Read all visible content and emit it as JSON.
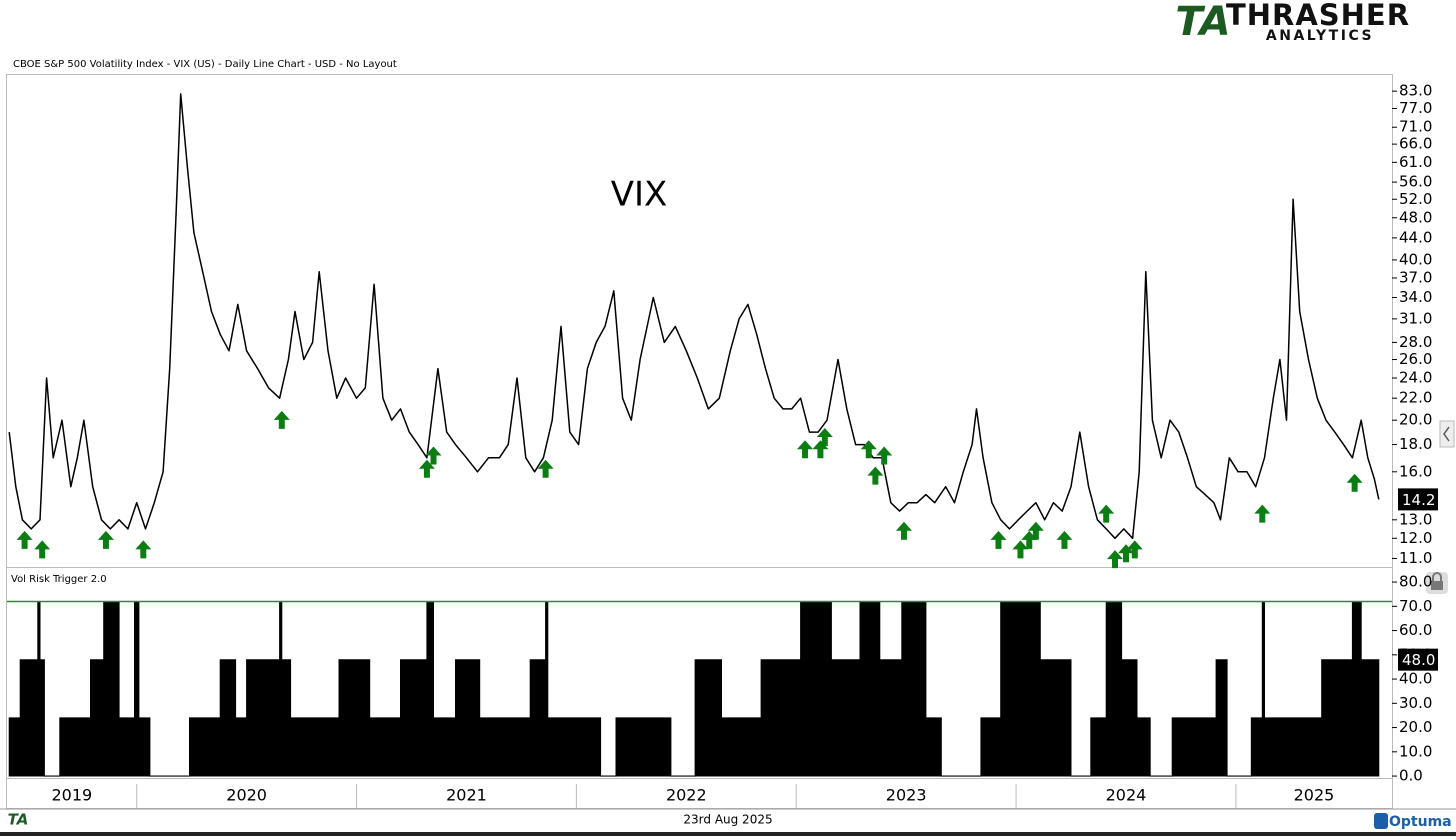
{
  "header": {
    "logo": "TA",
    "brand": "THRASHER",
    "brand_sub": "ANALYTICS"
  },
  "footer": {
    "logo": "TA",
    "date": "23rd Aug 2025",
    "vendor": "Optuma"
  },
  "chart_data": [
    {
      "type": "line",
      "title": "VIX",
      "subtitle": "CBOE S&P 500 Volatility Index - VIX (US) - Daily Line Chart - USD - No Layout",
      "color": "#000000",
      "log_scale": true,
      "xlim": [
        2019.41,
        2025.71
      ],
      "ylim": [
        10.6,
        89
      ],
      "yticks": [
        {
          "value": 11,
          "label": "11.0"
        },
        {
          "value": 12,
          "label": "12.0"
        },
        {
          "value": 13,
          "label": "13.0"
        },
        {
          "value": 16,
          "label": "16.0"
        },
        {
          "value": 18,
          "label": "18.0"
        },
        {
          "value": 20,
          "label": "20.0"
        },
        {
          "value": 22,
          "label": "22.0"
        },
        {
          "value": 24,
          "label": "24.0"
        },
        {
          "value": 26,
          "label": "26.0"
        },
        {
          "value": 28,
          "label": "28.0"
        },
        {
          "value": 31,
          "label": "31.0"
        },
        {
          "value": 34,
          "label": "34.0"
        },
        {
          "value": 37,
          "label": "37.0"
        },
        {
          "value": 40,
          "label": "40.0"
        },
        {
          "value": 44,
          "label": "44.0"
        },
        {
          "value": 48,
          "label": "48.0"
        },
        {
          "value": 52,
          "label": "52.0"
        },
        {
          "value": 56,
          "label": "56.0"
        },
        {
          "value": 61,
          "label": "61.0"
        },
        {
          "value": 66,
          "label": "66.0"
        },
        {
          "value": 71,
          "label": "71.0"
        },
        {
          "value": 77,
          "label": "77.0"
        },
        {
          "value": 83,
          "label": "83.0"
        }
      ],
      "last_value": {
        "value": 14.2,
        "label": "14.2"
      },
      "x": [
        2019.42,
        2019.45,
        2019.48,
        2019.52,
        2019.56,
        2019.59,
        2019.62,
        2019.66,
        2019.7,
        2019.73,
        2019.76,
        2019.8,
        2019.84,
        2019.88,
        2019.92,
        2019.96,
        2020.0,
        2020.04,
        2020.08,
        2020.12,
        2020.15,
        2020.18,
        2020.2,
        2020.23,
        2020.26,
        2020.3,
        2020.34,
        2020.38,
        2020.42,
        2020.46,
        2020.5,
        2020.55,
        2020.6,
        2020.65,
        2020.69,
        2020.72,
        2020.76,
        2020.8,
        2020.83,
        2020.87,
        2020.91,
        2020.95,
        2021.0,
        2021.04,
        2021.08,
        2021.12,
        2021.16,
        2021.2,
        2021.24,
        2021.28,
        2021.32,
        2021.37,
        2021.41,
        2021.45,
        2021.5,
        2021.55,
        2021.6,
        2021.65,
        2021.69,
        2021.73,
        2021.77,
        2021.81,
        2021.85,
        2021.89,
        2021.93,
        2021.97,
        2022.01,
        2022.05,
        2022.09,
        2022.13,
        2022.17,
        2022.21,
        2022.25,
        2022.29,
        2022.35,
        2022.4,
        2022.45,
        2022.5,
        2022.55,
        2022.6,
        2022.65,
        2022.7,
        2022.74,
        2022.78,
        2022.82,
        2022.86,
        2022.9,
        2022.94,
        2022.98,
        2023.02,
        2023.06,
        2023.1,
        2023.14,
        2023.19,
        2023.23,
        2023.27,
        2023.31,
        2023.35,
        2023.39,
        2023.43,
        2023.47,
        2023.51,
        2023.55,
        2023.59,
        2023.63,
        2023.68,
        2023.72,
        2023.76,
        2023.8,
        2023.82,
        2023.85,
        2023.89,
        2023.93,
        2023.97,
        2024.01,
        2024.05,
        2024.09,
        2024.13,
        2024.17,
        2024.21,
        2024.25,
        2024.29,
        2024.33,
        2024.37,
        2024.41,
        2024.45,
        2024.49,
        2024.53,
        2024.56,
        2024.59,
        2024.62,
        2024.66,
        2024.7,
        2024.74,
        2024.78,
        2024.82,
        2024.86,
        2024.9,
        2024.93,
        2024.97,
        2025.01,
        2025.05,
        2025.09,
        2025.13,
        2025.17,
        2025.2,
        2025.23,
        2025.26,
        2025.29,
        2025.33,
        2025.37,
        2025.41,
        2025.45,
        2025.49,
        2025.53,
        2025.57,
        2025.6,
        2025.63,
        2025.65
      ],
      "values": [
        19,
        15,
        13,
        12.5,
        13,
        24,
        17,
        20,
        15,
        17,
        20,
        15,
        13,
        12.5,
        13,
        12.5,
        14,
        12.5,
        14,
        16,
        25,
        50,
        82,
        60,
        45,
        38,
        32,
        29,
        27,
        33,
        27,
        25,
        23,
        22,
        26,
        32,
        26,
        28,
        38,
        27,
        22,
        24,
        22,
        23,
        36,
        22,
        20,
        21,
        19,
        18,
        17,
        25,
        19,
        18,
        17,
        16,
        17,
        17,
        18,
        24,
        17,
        16,
        17,
        20,
        30,
        19,
        18,
        25,
        28,
        30,
        35,
        22,
        20,
        26,
        34,
        28,
        30,
        27,
        24,
        21,
        22,
        27,
        31,
        33,
        29,
        25,
        22,
        21,
        21,
        22,
        19,
        19,
        20,
        26,
        21,
        18,
        18,
        17,
        17,
        14,
        13.5,
        14,
        14,
        14.5,
        14,
        15,
        14,
        16,
        18,
        21,
        17,
        14,
        13,
        12.5,
        13,
        13.5,
        14,
        13,
        14,
        13.5,
        15,
        19,
        15,
        13,
        12.5,
        12,
        12.5,
        12,
        16,
        38,
        20,
        17,
        20,
        19,
        17,
        15,
        14.5,
        14,
        13,
        17,
        16,
        16,
        15,
        17,
        22,
        26,
        20,
        52,
        32,
        26,
        22,
        20,
        19,
        18,
        17,
        20,
        17,
        15.5,
        14.2
      ],
      "markers": {
        "color": "#0b7d12",
        "x": [
          2019.49,
          2019.57,
          2019.86,
          2020.03,
          2020.66,
          2021.32,
          2021.35,
          2021.86,
          2023.04,
          2023.11,
          2023.13,
          2023.33,
          2023.36,
          2023.4,
          2023.49,
          2023.92,
          2024.02,
          2024.06,
          2024.09,
          2024.22,
          2024.41,
          2024.45,
          2024.5,
          2024.54,
          2025.12,
          2025.54
        ],
        "y": [
          12.5,
          12,
          12.5,
          12,
          21,
          17,
          18,
          17,
          18.5,
          18.5,
          19.5,
          18.5,
          16.5,
          18,
          13,
          12.5,
          12,
          12.5,
          13,
          12.5,
          14,
          11.5,
          11.8,
          12,
          14,
          16
        ]
      }
    },
    {
      "type": "area",
      "title": "Vol Risk Trigger 2.0",
      "color": "#000000",
      "step": true,
      "xlim": [
        2019.41,
        2025.71
      ],
      "ylim": [
        -0.8,
        85.8
      ],
      "xticks": [
        2019,
        2020,
        2021,
        2022,
        2023,
        2024,
        2025
      ],
      "yticks": [
        {
          "value": 0,
          "label": "0.0"
        },
        {
          "value": 10,
          "label": "10.0"
        },
        {
          "value": 20,
          "label": "20.0"
        },
        {
          "value": 30,
          "label": "30.0"
        },
        {
          "value": 40,
          "label": "40.0"
        },
        {
          "value": 50,
          "label": "50.0"
        },
        {
          "value": 60,
          "label": "60.0"
        },
        {
          "value": 70,
          "label": "70.0"
        },
        {
          "value": 80,
          "label": "80.0"
        }
      ],
      "reference_line": {
        "value": 72,
        "color": "#2e8b2e"
      },
      "last_value": {
        "value": 48,
        "label": "48.0"
      },
      "x": [
        2019.42,
        2019.47,
        2019.55,
        2019.56,
        2019.58,
        2019.65,
        2019.79,
        2019.85,
        2019.92,
        2019.99,
        2020.01,
        2020.06,
        2020.24,
        2020.38,
        2020.45,
        2020.5,
        2020.65,
        2020.66,
        2020.7,
        2020.92,
        2021.06,
        2021.2,
        2021.32,
        2021.35,
        2021.45,
        2021.56,
        2021.79,
        2021.86,
        2021.87,
        2022.11,
        2022.18,
        2022.43,
        2022.54,
        2022.66,
        2022.84,
        2023.02,
        2023.16,
        2023.29,
        2023.38,
        2023.48,
        2023.59,
        2023.66,
        2023.84,
        2023.93,
        2024.11,
        2024.25,
        2024.34,
        2024.41,
        2024.48,
        2024.55,
        2024.61,
        2024.71,
        2024.91,
        2024.96,
        2025.07,
        2025.12,
        2025.13,
        2025.39,
        2025.53,
        2025.57,
        2025.65
      ],
      "values": [
        24,
        48,
        72,
        48,
        0,
        24,
        48,
        72,
        24,
        72,
        24,
        0,
        24,
        48,
        24,
        48,
        72,
        48,
        24,
        48,
        24,
        48,
        72,
        24,
        48,
        24,
        48,
        72,
        24,
        0,
        24,
        0,
        48,
        24,
        48,
        72,
        48,
        72,
        48,
        72,
        24,
        0,
        24,
        72,
        48,
        0,
        24,
        72,
        48,
        24,
        0,
        24,
        48,
        0,
        24,
        72,
        24,
        48,
        72,
        48,
        48
      ]
    }
  ]
}
